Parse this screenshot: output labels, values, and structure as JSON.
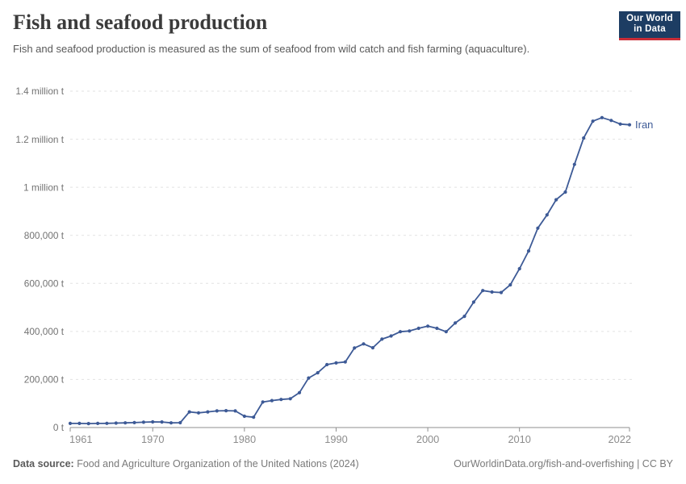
{
  "header": {
    "title": "Fish and seafood production",
    "subtitle": "Fish and seafood production is measured as the sum of seafood from wild catch and fish farming (aquaculture).",
    "logo_line1": "Our World",
    "logo_line2": "in Data"
  },
  "chart_data": {
    "type": "line",
    "title": "Fish and seafood production",
    "unit": "t",
    "grid": "dashed horizontal gridlines",
    "legend_position": "end-of-line label",
    "xlim": [
      1961,
      2022
    ],
    "ylim": [
      0,
      1400000
    ],
    "x_ticks": [
      1961,
      1970,
      1980,
      1990,
      2000,
      2010,
      2022
    ],
    "y_ticks": [
      {
        "value": 0,
        "label": "0 t"
      },
      {
        "value": 200000,
        "label": "200,000 t"
      },
      {
        "value": 400000,
        "label": "400,000 t"
      },
      {
        "value": 600000,
        "label": "600,000 t"
      },
      {
        "value": 800000,
        "label": "800,000 t"
      },
      {
        "value": 1000000,
        "label": "1 million t"
      },
      {
        "value": 1200000,
        "label": "1.2 million t"
      },
      {
        "value": 1400000,
        "label": "1.4 million t"
      }
    ],
    "series": [
      {
        "name": "Iran",
        "color": "#3d5a96",
        "x": [
          1961,
          1962,
          1963,
          1964,
          1965,
          1966,
          1967,
          1968,
          1969,
          1970,
          1971,
          1972,
          1973,
          1974,
          1975,
          1976,
          1977,
          1978,
          1979,
          1980,
          1981,
          1982,
          1983,
          1984,
          1985,
          1986,
          1987,
          1988,
          1989,
          1990,
          1991,
          1992,
          1993,
          1994,
          1995,
          1996,
          1997,
          1998,
          1999,
          2000,
          2001,
          2002,
          2003,
          2004,
          2005,
          2006,
          2007,
          2008,
          2009,
          2010,
          2011,
          2012,
          2013,
          2014,
          2015,
          2016,
          2017,
          2018,
          2019,
          2020,
          2021,
          2022
        ],
        "values": [
          17000,
          17000,
          16500,
          17000,
          17500,
          18500,
          19500,
          20500,
          22000,
          23500,
          23000,
          19500,
          20000,
          65000,
          61000,
          65000,
          69000,
          70000,
          69000,
          47000,
          43000,
          106000,
          112000,
          117000,
          120000,
          145000,
          206000,
          228000,
          262000,
          269000,
          273000,
          331000,
          348000,
          332000,
          368000,
          381000,
          399000,
          402000,
          413000,
          422000,
          413000,
          399000,
          435000,
          463000,
          522000,
          570000,
          564000,
          562000,
          594000,
          661000,
          735000,
          830000,
          885000,
          948000,
          980000,
          1095000,
          1205000,
          1275000,
          1290000,
          1278000,
          1263000,
          1260000
        ]
      }
    ]
  },
  "footer": {
    "source_label": "Data source:",
    "source_text": " Food and Agriculture Organization of the United Nations (2024)",
    "credit": "OurWorldinData.org/fish-and-overfishing | CC BY"
  },
  "colors": {
    "line": "#3d5a96",
    "entity_label": "#3d5a96",
    "grid": "#e2e2e2",
    "axis": "#8f8f8f",
    "y_tick_text": "#737373",
    "x_tick_text": "#8c8c8c",
    "logo_bg": "#1d3d63",
    "logo_stripe": "#c82d37"
  }
}
